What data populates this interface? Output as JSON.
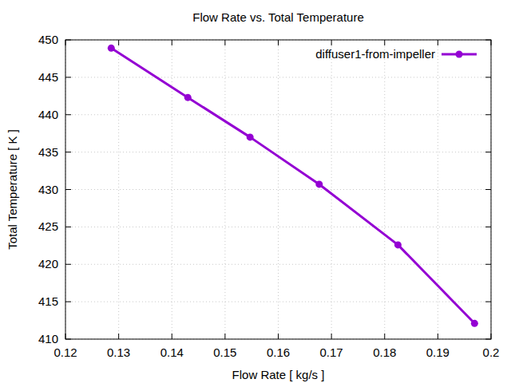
{
  "chart_data": {
    "type": "line",
    "title": "Flow Rate vs. Total Temperature",
    "x_label": "Flow Rate [ kg/s ]",
    "y_label": "Total Temperature [ K ]",
    "x": [
      0.1286,
      0.143,
      0.1547,
      0.1677,
      0.1825,
      0.1969
    ],
    "series": [
      {
        "name": "diffuser1-from-impeller",
        "color": "#9400d3",
        "marker": "circle",
        "line_style": "solid",
        "values": [
          448.9,
          442.3,
          437.0,
          430.7,
          422.6,
          412.1
        ]
      }
    ],
    "xlim": [
      0.12,
      0.2
    ],
    "xticks": [
      0.12,
      0.13,
      0.14,
      0.15,
      0.16,
      0.17,
      0.18,
      0.19,
      0.2
    ],
    "ylim": [
      410,
      450
    ],
    "yticks": [
      410,
      415,
      420,
      425,
      430,
      435,
      440,
      445,
      450
    ],
    "grid": true,
    "legend": "top-right"
  }
}
